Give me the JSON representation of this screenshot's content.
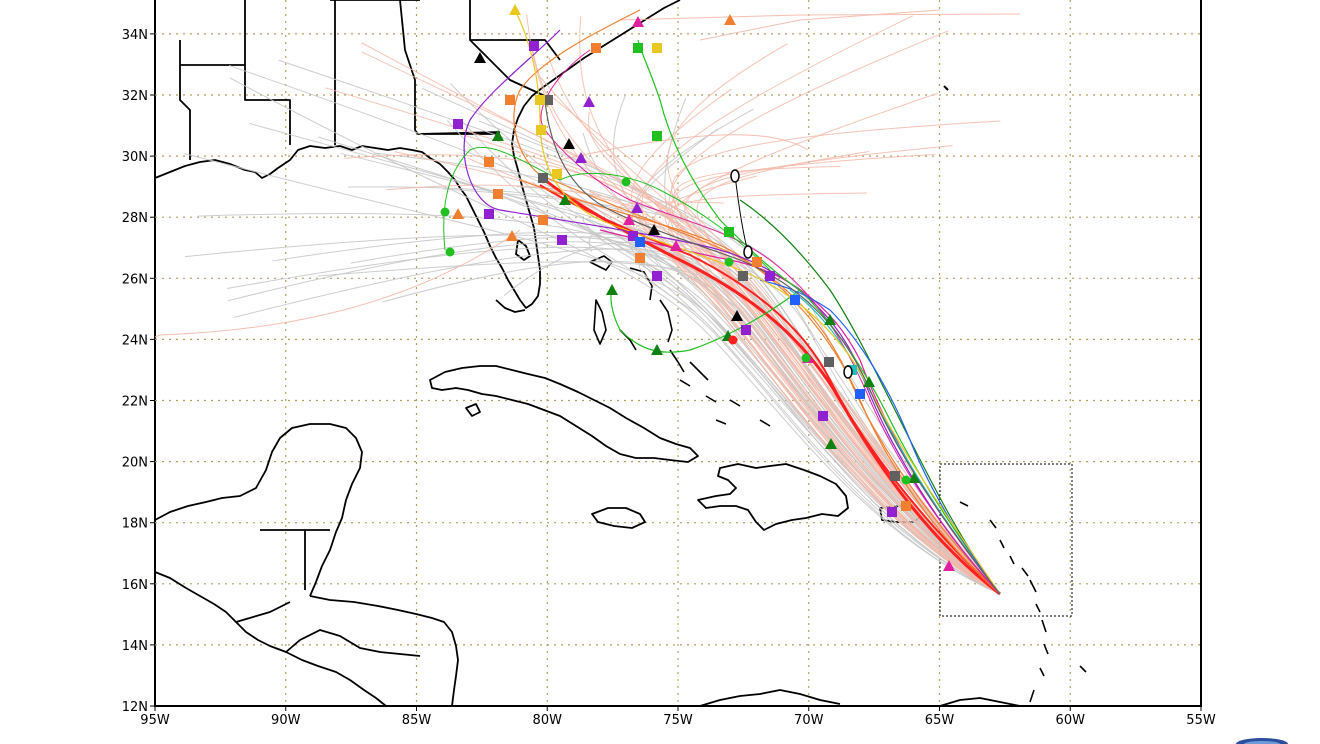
{
  "map": {
    "lon_ticks": [
      "95W",
      "90W",
      "85W",
      "80W",
      "75W",
      "70W",
      "65W",
      "60W",
      "55W"
    ],
    "lat_ticks": [
      "12N",
      "14N",
      "16N",
      "18N",
      "20N",
      "22N",
      "24N",
      "26N",
      "28N",
      "30N",
      "32N",
      "34N"
    ],
    "lon_range": [
      -95,
      -55
    ],
    "lat_range": [
      12,
      35.3
    ],
    "grid_color": "#b0a060",
    "coast_color": "#000000",
    "track_colors": {
      "ensemble_light": "#c8c8c8",
      "ensemble_pink": "#f4b8a8",
      "red": "#ff2020",
      "orange": "#f08030",
      "purple": "#9020d0",
      "magenta": "#e020a0",
      "green": "#20c020",
      "dark_green": "#108010",
      "blue": "#2060ff",
      "yellow": "#e8c820",
      "gray_dark": "#606060",
      "black": "#000000",
      "cyan": "#20c0c0"
    }
  },
  "logo": {
    "name": "noaa-logo"
  }
}
